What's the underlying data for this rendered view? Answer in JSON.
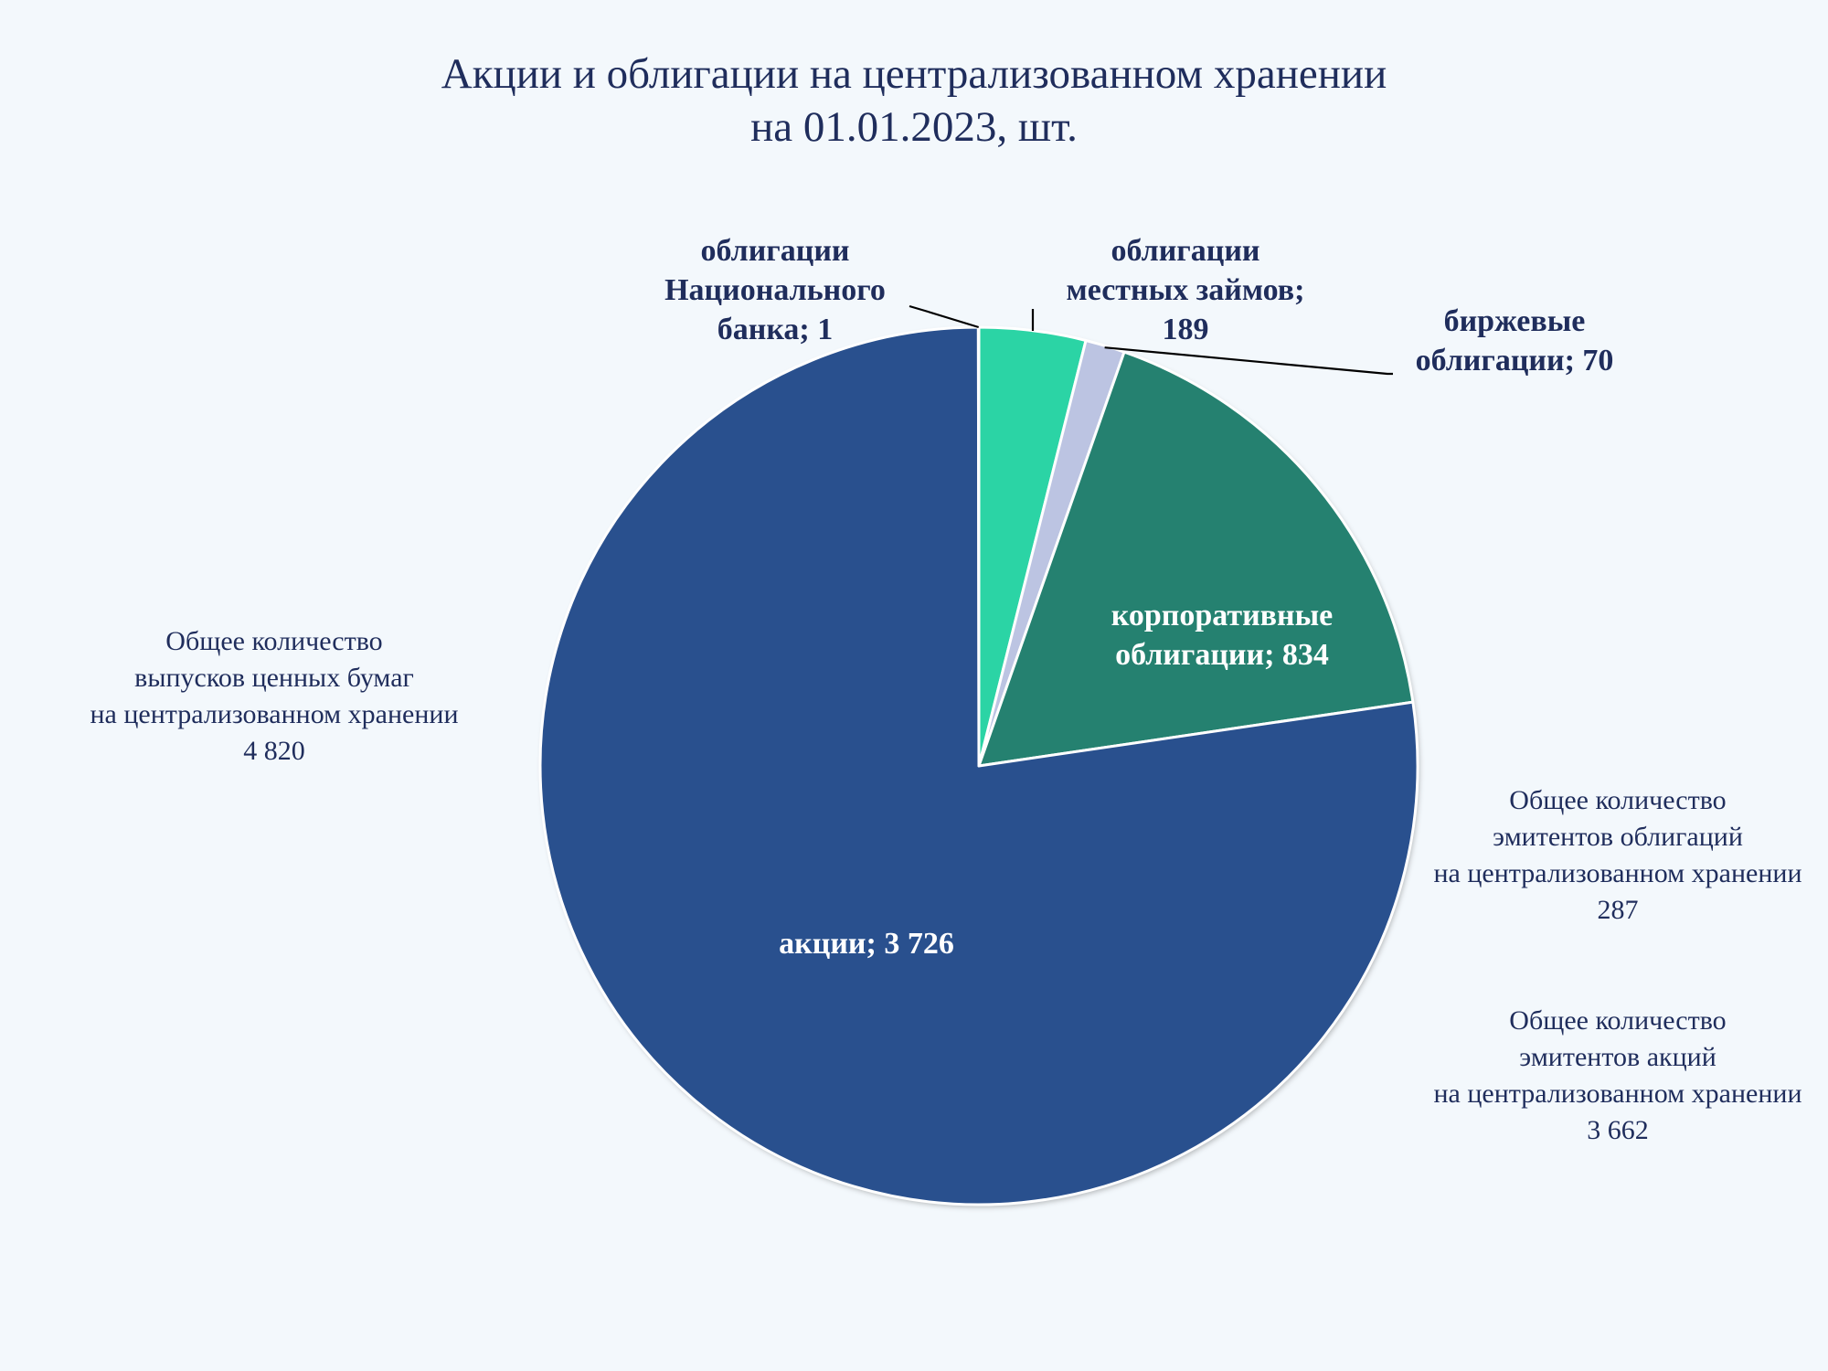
{
  "chart_data": {
    "type": "pie",
    "title_line1": "Акции и облигации на централизованном хранении",
    "title_line2": "на 01.01.2023, шт.",
    "slices": [
      {
        "label_lines": [
          "облигации",
          "местных займов;",
          "189"
        ],
        "value": 189,
        "color": "#2bd4a5"
      },
      {
        "label_lines": [
          "биржевые",
          "облигации; 70"
        ],
        "value": 70,
        "color": "#bcc4e2"
      },
      {
        "label_lines": [
          "корпоративные",
          "облигации; 834"
        ],
        "value": 834,
        "color": "#258170"
      },
      {
        "label_lines": [
          "акции; 3 726"
        ],
        "value": 3726,
        "color": "#29508e"
      },
      {
        "label_lines": [
          "облигации",
          "Национального",
          "банка; 1"
        ],
        "value": 1,
        "color": "#2bd4a5"
      }
    ]
  },
  "notes": {
    "total_issues": [
      "Общее количество",
      "выпусков ценных бумаг",
      "на централизованном хранении",
      "4 820"
    ],
    "bond_issuers": [
      "Общее количество",
      "эмитентов облигаций",
      "на централизованном хранении",
      "287"
    ],
    "share_issuers": [
      "Общее количество",
      "эмитентов акций",
      "на централизованном хранении",
      "3 662"
    ]
  }
}
